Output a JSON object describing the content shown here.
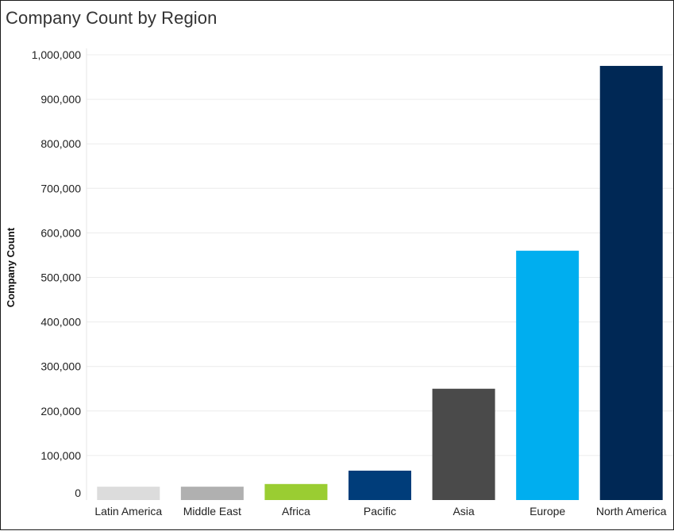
{
  "chart_data": {
    "type": "bar",
    "title": "Company Count by Region",
    "xlabel": "",
    "ylabel": "Company Count",
    "ylim": [
      0,
      1000000
    ],
    "yticks": [
      0,
      100000,
      200000,
      300000,
      400000,
      500000,
      600000,
      700000,
      800000,
      900000,
      1000000
    ],
    "ytick_labels": [
      "0",
      "100,000",
      "200,000",
      "300,000",
      "400,000",
      "500,000",
      "600,000",
      "700,000",
      "800,000",
      "900,000",
      "1,000,000"
    ],
    "categories": [
      "Latin America",
      "Middle East",
      "Africa",
      "Pacific",
      "Asia",
      "Europe",
      "North America"
    ],
    "values": [
      30000,
      30000,
      36000,
      66000,
      250000,
      560000,
      975000
    ],
    "colors": [
      "#dcdcdc",
      "#b0b0b0",
      "#9acd32",
      "#003d7a",
      "#4a4a4a",
      "#00aeef",
      "#002855"
    ],
    "grid": true
  }
}
